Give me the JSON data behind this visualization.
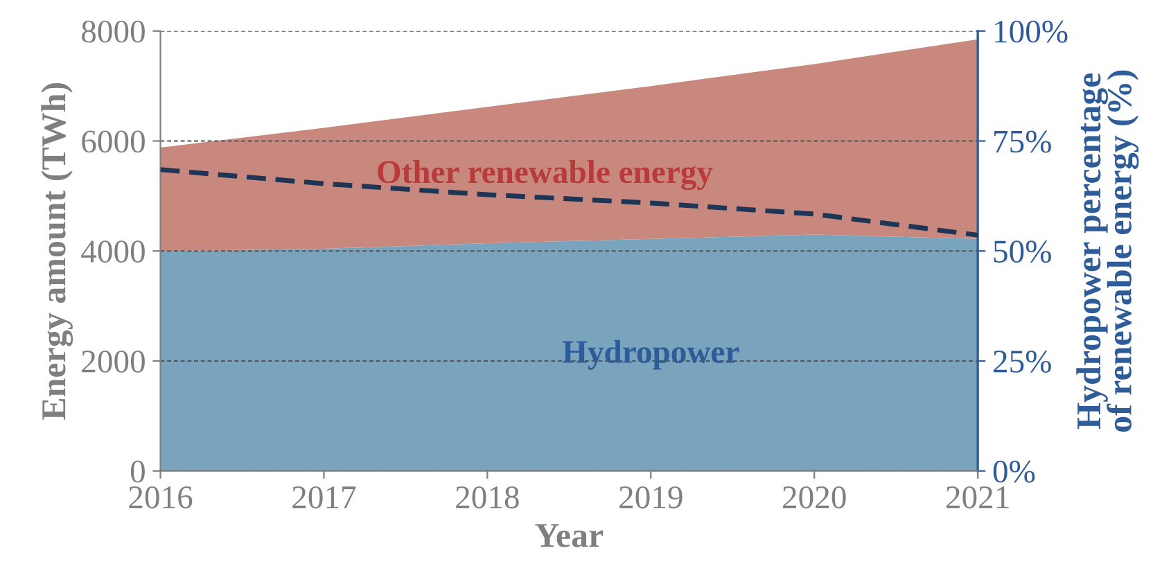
{
  "chart_data": {
    "type": "area",
    "stacked": true,
    "xlabel": "Year",
    "ylabel": "Energy amount (TWh)",
    "y2label": "Hydropower percentage\nof renewable energy (%)",
    "x": [
      2016,
      2017,
      2018,
      2019,
      2020,
      2021
    ],
    "series": [
      {
        "name": "Hydropower",
        "color": "#7aa3bd",
        "values": [
          4000,
          4040,
          4140,
          4220,
          4300,
          4220
        ]
      },
      {
        "name": "Other renewable energy",
        "color": "#c9887d",
        "values": [
          1880,
          2200,
          2480,
          2780,
          3100,
          3630
        ]
      },
      {
        "type": "line",
        "axis": "y2",
        "color": "#1f3556",
        "line_style": "dashed",
        "values": [
          68.5,
          65.3,
          62.8,
          60.9,
          58.4,
          53.6
        ]
      }
    ],
    "xlim": [
      2016,
      2021
    ],
    "ylim": [
      0,
      8000
    ],
    "y2lim": [
      0,
      100
    ],
    "xticks": [
      2016,
      2017,
      2018,
      2019,
      2020,
      2021
    ],
    "yticks": [
      0,
      2000,
      4000,
      6000,
      8000
    ],
    "y2ticks": [
      {
        "value": 0,
        "label": "0%"
      },
      {
        "value": 25,
        "label": "25%"
      },
      {
        "value": 50,
        "label": "50%"
      },
      {
        "value": 75,
        "label": "75%"
      },
      {
        "value": 100,
        "label": "100%"
      }
    ],
    "grid": "y",
    "legend": false
  }
}
